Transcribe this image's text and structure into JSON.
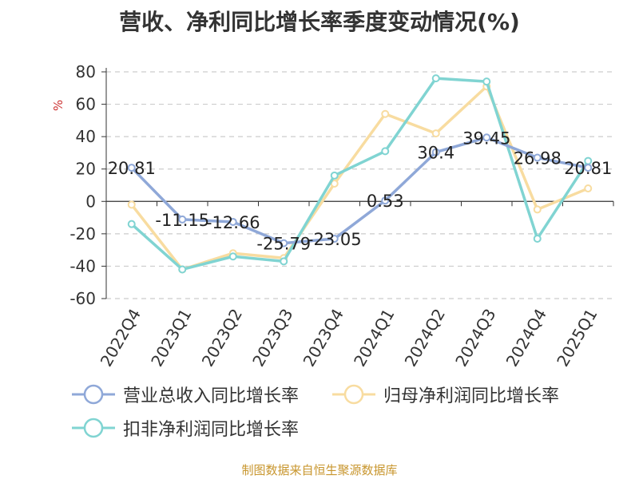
{
  "chart_data": {
    "type": "line",
    "title": "营收、净利同比增长率季度变动情况(%)",
    "ylabel": "%",
    "ylim": [
      -60,
      80
    ],
    "yticks": [
      -60,
      -40,
      -20,
      0,
      20,
      40,
      60,
      80
    ],
    "grid": true,
    "legend_position": "bottom",
    "categories": [
      "2022Q4",
      "2023Q1",
      "2023Q2",
      "2023Q3",
      "2023Q4",
      "2024Q1",
      "2024Q2",
      "2024Q3",
      "2024Q4",
      "2025Q1"
    ],
    "series": [
      {
        "name": "营业总收入同比增长率",
        "color": "#8fa8d8",
        "values": [
          20.81,
          -11.15,
          -12.66,
          -25.79,
          -23.05,
          0.53,
          30.4,
          39.45,
          26.98,
          20.81
        ],
        "labels": [
          "20.81",
          "-11.15",
          "-12.66",
          "-25.79",
          "-23.05",
          "0.53",
          "30.4",
          "39.45",
          "26.98",
          "20.81"
        ]
      },
      {
        "name": "归母净利润同比增长率",
        "color": "#f8dca0",
        "values": [
          -2,
          -42,
          -32,
          -35,
          11,
          54,
          42,
          71,
          -5,
          8
        ]
      },
      {
        "name": "扣非净利润同比增长率",
        "color": "#80d4d2",
        "values": [
          -14,
          -42,
          -34,
          -37,
          16,
          31,
          76,
          74,
          -23,
          25
        ]
      }
    ]
  },
  "source": "制图数据来自恒生聚源数据库"
}
